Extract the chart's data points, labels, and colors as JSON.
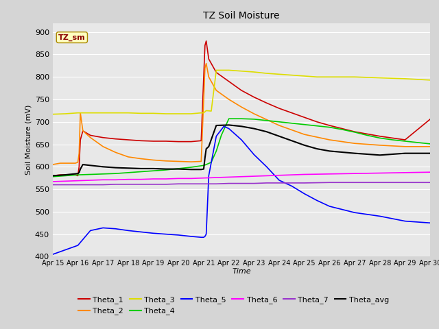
{
  "title": "TZ Soil Moisture",
  "xlabel": "Time",
  "ylabel": "Soil Moisture (mV)",
  "ylim": [
    400,
    920
  ],
  "legend_label": "TZ_sm",
  "xtick_labels": [
    "Apr 15",
    "Apr 16",
    "Apr 17",
    "Apr 18",
    "Apr 19",
    "Apr 20",
    "Apr 21",
    "Apr 22",
    "Apr 23",
    "Apr 24",
    "Apr 25",
    "Apr 26",
    "Apr 27",
    "Apr 28",
    "Apr 29",
    "Apr 30"
  ],
  "series": {
    "Theta_1": {
      "color": "#cc0000",
      "lw": 1.2
    },
    "Theta_2": {
      "color": "#ff8800",
      "lw": 1.2
    },
    "Theta_3": {
      "color": "#dddd00",
      "lw": 1.2
    },
    "Theta_4": {
      "color": "#00cc00",
      "lw": 1.2
    },
    "Theta_5": {
      "color": "#0000ff",
      "lw": 1.2
    },
    "Theta_6": {
      "color": "#ff00ff",
      "lw": 1.2
    },
    "Theta_7": {
      "color": "#9933cc",
      "lw": 1.2
    },
    "Theta_avg": {
      "color": "#000000",
      "lw": 1.5
    }
  },
  "Theta_1_x": [
    0,
    0.3,
    0.9,
    1.0,
    1.05,
    1.1,
    1.2,
    1.5,
    2.0,
    2.5,
    3.0,
    3.5,
    4.0,
    4.5,
    5.0,
    5.5,
    5.9,
    6.0,
    6.05,
    6.1,
    6.2,
    6.5,
    7.0,
    7.5,
    8.0,
    8.5,
    9.0,
    9.5,
    10.0,
    10.5,
    11.0,
    12.0,
    13.0,
    14.0,
    15.0
  ],
  "Theta_1": [
    580,
    582,
    582,
    580,
    600,
    660,
    680,
    670,
    665,
    662,
    660,
    658,
    657,
    657,
    656,
    656,
    658,
    800,
    870,
    880,
    840,
    810,
    790,
    770,
    755,
    742,
    730,
    720,
    710,
    700,
    692,
    678,
    668,
    660,
    706
  ],
  "Theta_2_x": [
    0,
    0.3,
    0.9,
    1.0,
    1.05,
    1.1,
    1.2,
    1.5,
    2.0,
    2.5,
    3.0,
    3.5,
    4.0,
    4.5,
    5.0,
    5.5,
    5.9,
    6.0,
    6.05,
    6.1,
    6.2,
    6.5,
    7.0,
    7.5,
    8.0,
    8.5,
    9.0,
    9.5,
    10.0,
    11.0,
    12.0,
    13.0,
    14.0,
    15.0
  ],
  "Theta_2": [
    605,
    608,
    608,
    610,
    630,
    720,
    680,
    665,
    645,
    632,
    622,
    618,
    615,
    613,
    612,
    611,
    612,
    750,
    820,
    830,
    800,
    770,
    750,
    733,
    718,
    705,
    692,
    682,
    672,
    660,
    652,
    648,
    645,
    645
  ],
  "Theta_3_x": [
    0,
    0.5,
    1.0,
    1.5,
    2.0,
    2.5,
    3.0,
    3.5,
    4.0,
    4.5,
    5.0,
    5.5,
    5.9,
    6.0,
    6.1,
    6.3,
    6.5,
    7.0,
    7.5,
    8.0,
    8.5,
    9.0,
    9.5,
    10.0,
    10.5,
    11.0,
    12.0,
    13.0,
    14.0,
    15.0
  ],
  "Theta_3": [
    717,
    718,
    720,
    720,
    720,
    720,
    720,
    719,
    719,
    718,
    718,
    718,
    720,
    720,
    725,
    724,
    815,
    815,
    813,
    811,
    808,
    806,
    804,
    802,
    800,
    800,
    800,
    798,
    796,
    793
  ],
  "Theta_4_x": [
    0,
    0.5,
    1.0,
    1.5,
    2.0,
    2.5,
    3.0,
    3.5,
    4.0,
    4.5,
    5.0,
    5.5,
    6.0,
    6.1,
    6.3,
    6.5,
    6.7,
    7.0,
    7.5,
    8.0,
    8.5,
    9.0,
    9.5,
    10.0,
    10.5,
    11.0,
    11.5,
    12.0,
    12.5,
    13.0,
    13.5,
    14.0,
    14.5,
    15.0
  ],
  "Theta_4": [
    578,
    580,
    582,
    583,
    584,
    585,
    587,
    589,
    591,
    593,
    596,
    599,
    603,
    605,
    610,
    635,
    670,
    707,
    707,
    706,
    703,
    700,
    697,
    694,
    691,
    688,
    683,
    677,
    670,
    664,
    660,
    657,
    654,
    651
  ],
  "Theta_5_x": [
    0,
    0.5,
    1.0,
    1.5,
    2.0,
    2.5,
    3.0,
    3.5,
    4.0,
    4.5,
    5.0,
    5.5,
    5.9,
    6.0,
    6.05,
    6.1,
    6.2,
    6.5,
    6.8,
    7.0,
    7.5,
    8.0,
    8.5,
    9.0,
    9.5,
    10.0,
    10.5,
    11.0,
    12.0,
    13.0,
    14.0,
    15.0
  ],
  "Theta_5": [
    405,
    415,
    425,
    458,
    464,
    462,
    458,
    455,
    452,
    450,
    448,
    445,
    443,
    443,
    445,
    450,
    580,
    668,
    690,
    685,
    660,
    627,
    600,
    570,
    557,
    540,
    525,
    512,
    498,
    490,
    479,
    475
  ],
  "Theta_6_x": [
    0,
    0.5,
    1.0,
    1.5,
    2.0,
    2.5,
    3.0,
    3.5,
    4.0,
    4.5,
    5.0,
    5.5,
    6.0,
    6.5,
    7.0,
    7.5,
    8.0,
    8.5,
    9.0,
    9.5,
    10.0,
    11.0,
    12.0,
    13.0,
    14.0,
    15.0
  ],
  "Theta_6": [
    567,
    568,
    569,
    570,
    571,
    571,
    572,
    572,
    573,
    573,
    574,
    574,
    575,
    576,
    577,
    578,
    579,
    580,
    581,
    582,
    583,
    584,
    585,
    586,
    587,
    588
  ],
  "Theta_7_x": [
    0,
    0.5,
    1.0,
    1.5,
    2.0,
    2.5,
    3.0,
    3.5,
    4.0,
    4.5,
    5.0,
    5.5,
    6.0,
    6.5,
    7.0,
    7.5,
    8.0,
    8.5,
    9.0,
    9.5,
    10.0,
    11.0,
    12.0,
    13.0,
    14.0,
    15.0
  ],
  "Theta_7": [
    560,
    560,
    560,
    560,
    560,
    561,
    561,
    561,
    561,
    561,
    562,
    562,
    562,
    562,
    563,
    563,
    563,
    564,
    564,
    564,
    564,
    565,
    565,
    565,
    565,
    565
  ],
  "Theta_avg_x": [
    0,
    0.5,
    1.0,
    1.05,
    1.1,
    1.2,
    1.5,
    2.0,
    2.5,
    3.0,
    3.5,
    4.0,
    4.5,
    5.0,
    5.5,
    5.9,
    6.0,
    6.05,
    6.1,
    6.2,
    6.5,
    7.0,
    7.5,
    8.0,
    8.5,
    9.0,
    9.5,
    10.0,
    10.5,
    11.0,
    12.0,
    13.0,
    14.0,
    15.0
  ],
  "Theta_avg": [
    580,
    582,
    585,
    587,
    595,
    605,
    603,
    600,
    598,
    597,
    596,
    596,
    595,
    595,
    594,
    594,
    595,
    620,
    640,
    645,
    692,
    693,
    690,
    685,
    678,
    668,
    658,
    648,
    640,
    635,
    630,
    626,
    630,
    630
  ]
}
